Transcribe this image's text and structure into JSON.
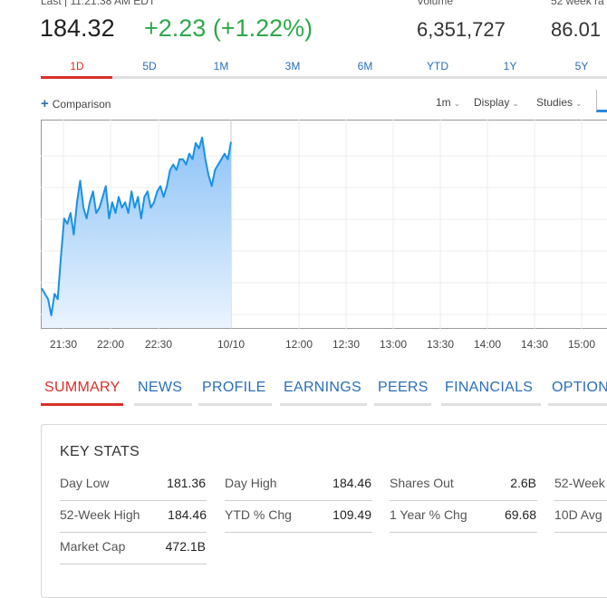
{
  "quote": {
    "last_label": "Last | 11:21:38 AM EDT",
    "price": "184.32",
    "change": "+2.23 (+1.22%)",
    "volume_label": "Volume",
    "volume": "6,351,727",
    "range_label": "52 week ra",
    "range_value": "86.01 -"
  },
  "ranges": [
    "1D",
    "5D",
    "1M",
    "3M",
    "6M",
    "YTD",
    "1Y",
    "5Y"
  ],
  "toolbar": {
    "comparison": "Comparison",
    "interval": "1m",
    "display": "Display",
    "studies": "Studies"
  },
  "chart_data": {
    "type": "area",
    "x_ticks": [
      "21:30",
      "22:00",
      "22:30",
      "10/10",
      "12:00",
      "12:30",
      "13:00",
      "13:30",
      "14:00",
      "14:30",
      "15:00"
    ],
    "series": [
      {
        "values": [
          181.6,
          181.5,
          181.4,
          181.1,
          181.5,
          181.4,
          182.2,
          182.9,
          182.8,
          183.0,
          182.6,
          183.2,
          183.6,
          183.1,
          182.9,
          183.2,
          183.4,
          183.0,
          183.1,
          183.3,
          183.5,
          182.9,
          183.2,
          183.0,
          183.3,
          183.1,
          183.2,
          183.0,
          183.4,
          183.1,
          183.3,
          182.9,
          183.3,
          183.4,
          183.1,
          183.2,
          183.4,
          183.5,
          183.3,
          183.5,
          183.8,
          183.9,
          183.8,
          184.0,
          184.0,
          183.9,
          184.1,
          184.0,
          184.3,
          184.2,
          184.4,
          184.0,
          183.7,
          183.5,
          183.8,
          183.9,
          184.0,
          184.1,
          184.0,
          184.32
        ]
      }
    ],
    "color": "#1a91e3",
    "fill_top": "#8ec3f7",
    "fill_bottom": "#eaf4fe",
    "x_ticks_n": 11
  },
  "nav": [
    "SUMMARY",
    "NEWS",
    "PROFILE",
    "EARNINGS",
    "PEERS",
    "FINANCIALS",
    "OPTION"
  ],
  "key_stats": {
    "title": "KEY STATS",
    "rows": [
      [
        {
          "label": "Day Low",
          "value": "181.36"
        },
        {
          "label": "Day High",
          "value": "184.46"
        },
        {
          "label": "Shares Out",
          "value": "2.6B"
        },
        {
          "label": "52-Week",
          "value": ""
        }
      ],
      [
        {
          "label": "52-Week High",
          "value": "184.46"
        },
        {
          "label": "YTD % Chg",
          "value": "109.49"
        },
        {
          "label": "1 Year % Chg",
          "value": "69.68"
        },
        {
          "label": "10D Avg",
          "value": ""
        }
      ],
      [
        {
          "label": "Market Cap",
          "value": "472.1B"
        }
      ]
    ]
  },
  "colors": {
    "positive": "#2ea84a",
    "accent_red": "#d6312b",
    "link_blue": "#2a6ebb"
  }
}
